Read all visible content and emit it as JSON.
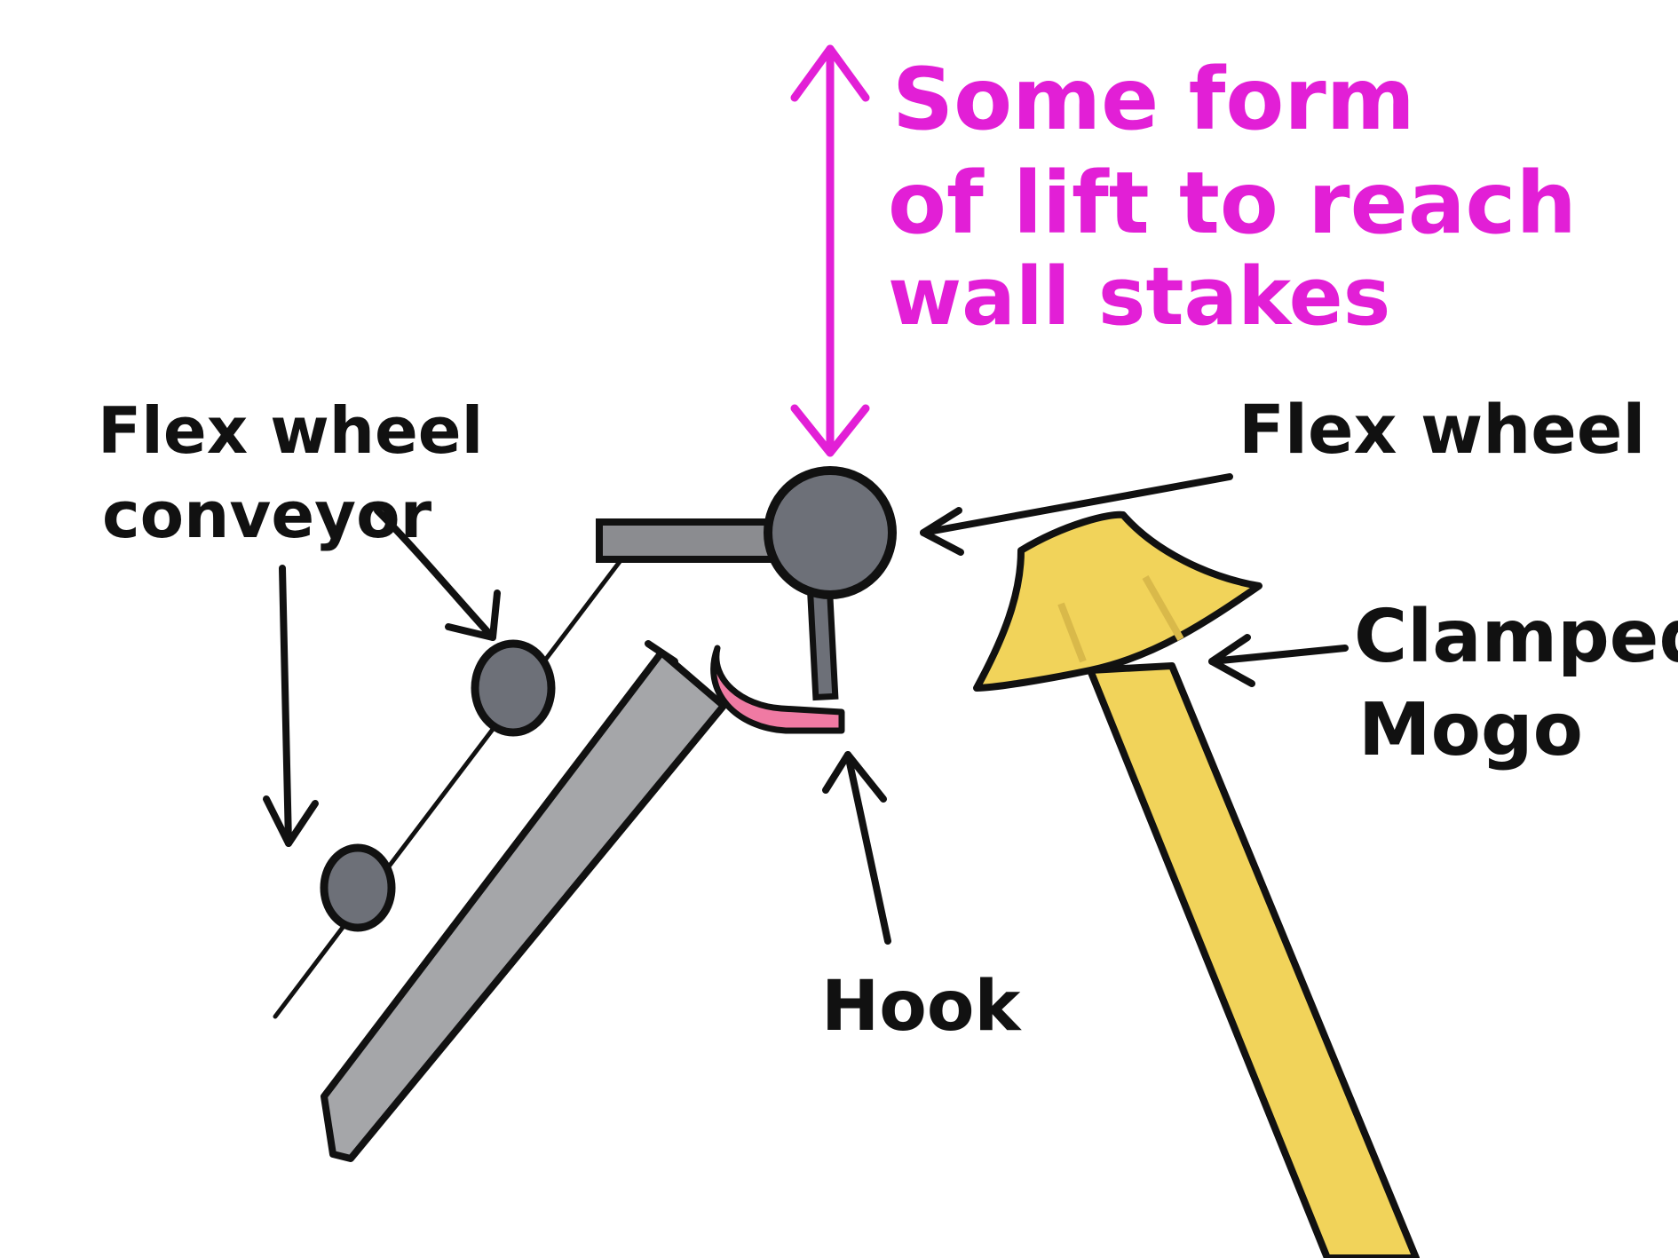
{
  "labels": {
    "lift": [
      "Some form",
      "of lift to reach",
      "wall stakes"
    ],
    "conveyor": [
      "Flex wheel",
      "conveyor"
    ],
    "flex_wheel": "Flex wheel",
    "clamped_mogo": [
      "Clamped",
      "Mogo"
    ],
    "hook": "Hook"
  },
  "colors": {
    "ink": "#111111",
    "lift_text": "#e21fd6",
    "wheel_gray": "#6d7078",
    "arm_gray": "#a5a6a9",
    "bar_gray": "#8b8c90",
    "hook_pink": "#f07aa3",
    "mogo_yellow": "#f1d35a",
    "mogo_shade": "#d9b94a"
  }
}
